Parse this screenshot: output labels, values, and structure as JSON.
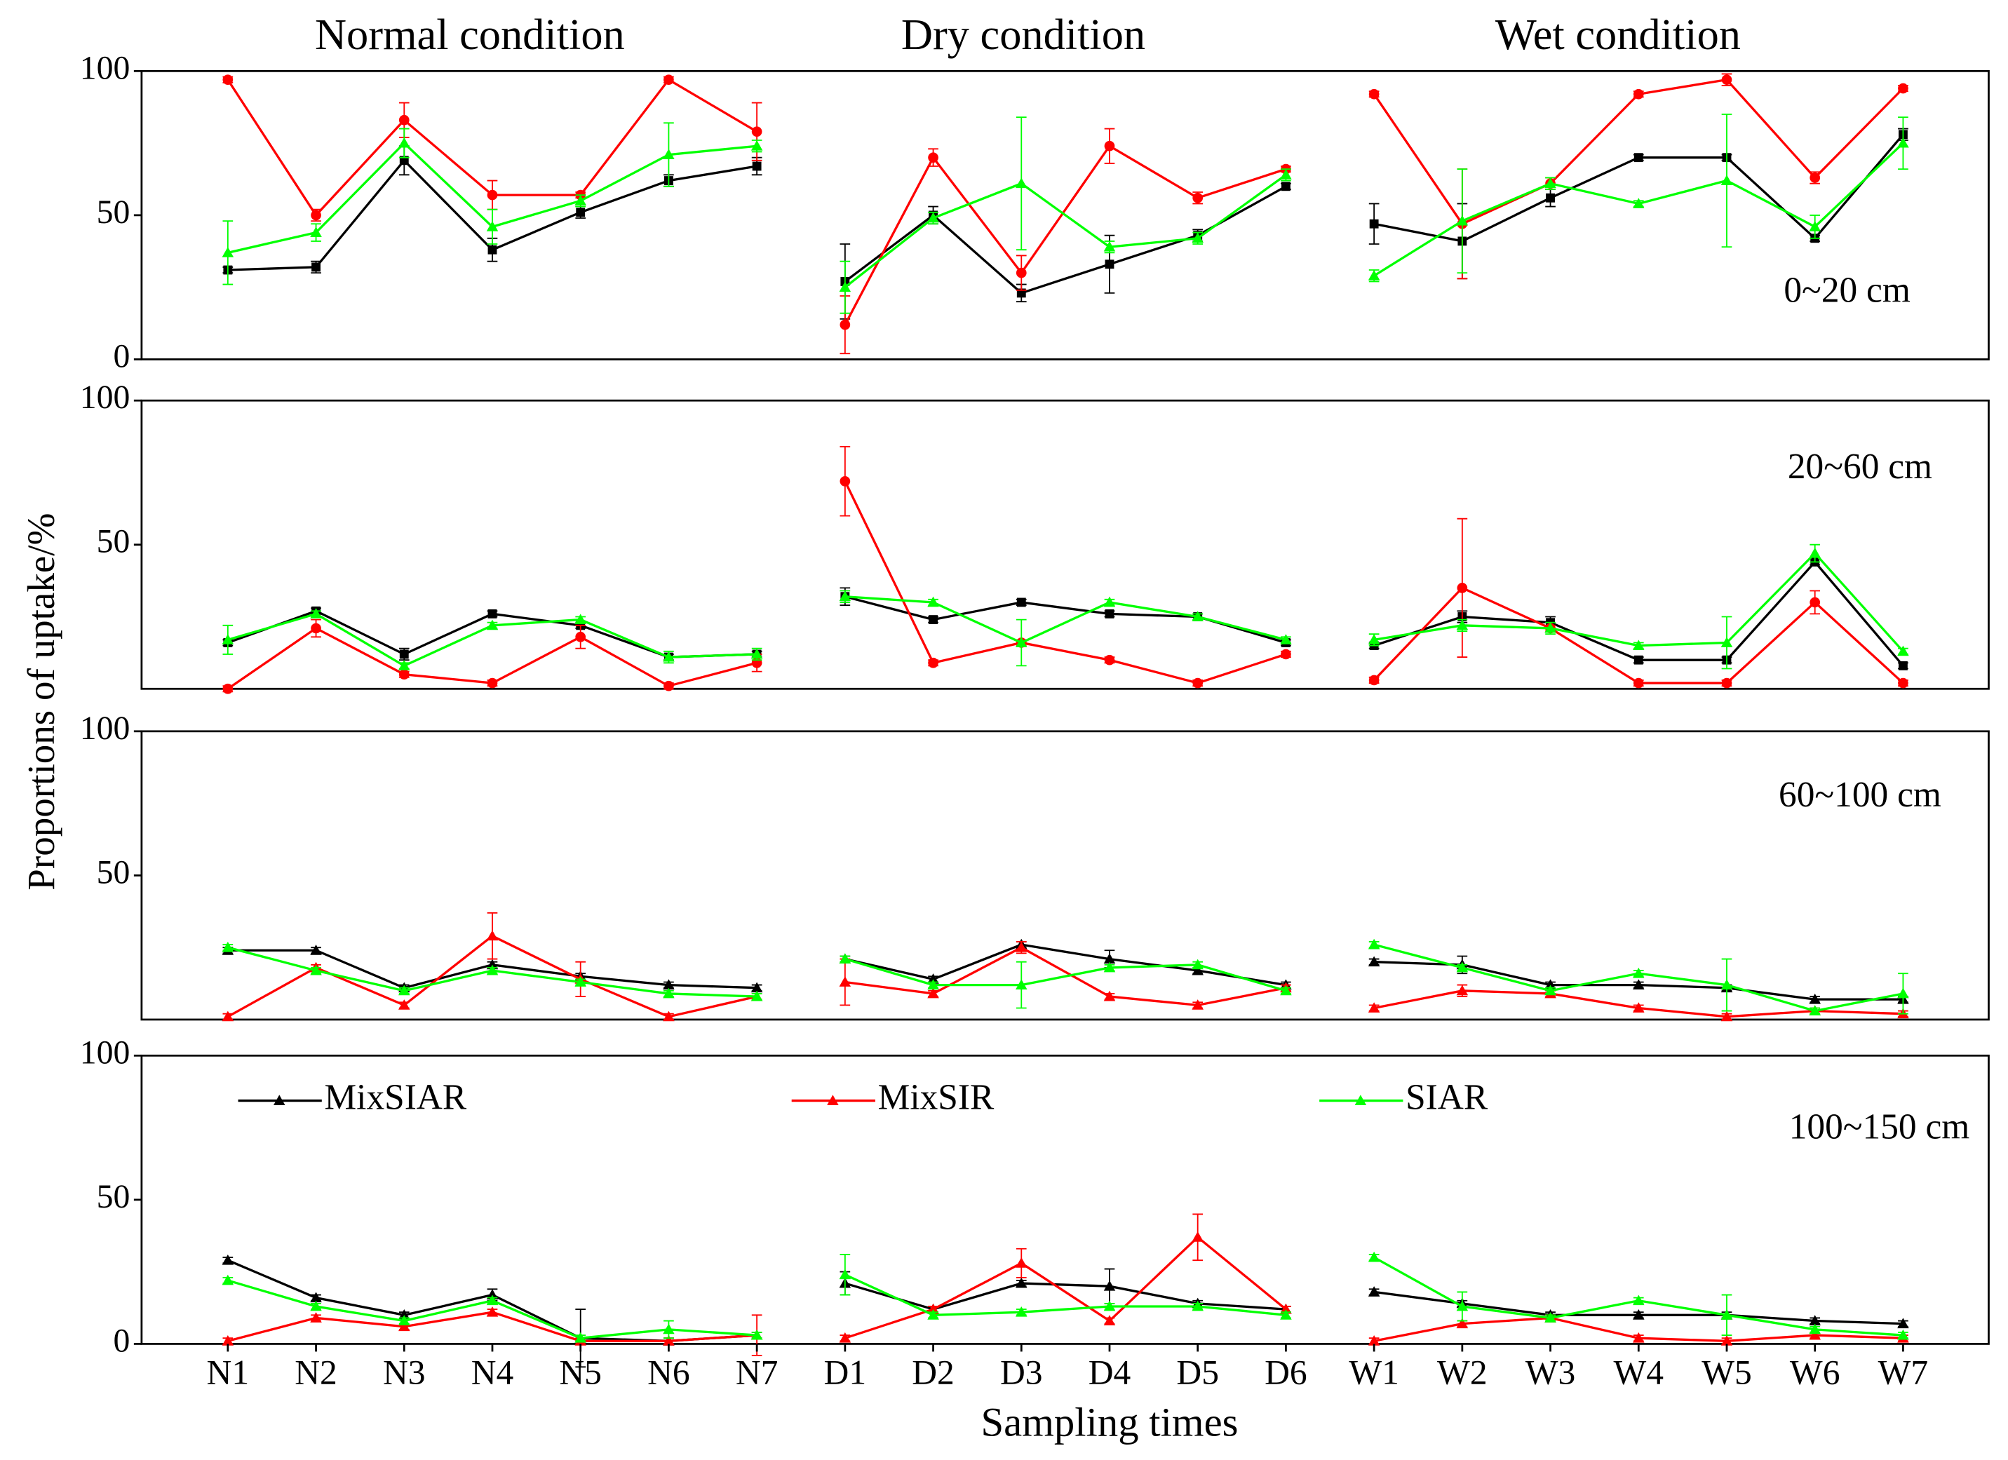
{
  "column_titles": [
    "Normal condition",
    "Dry condition",
    "Wet condition"
  ],
  "y_label": "Proportions of uptake/%",
  "x_label": "Sampling times",
  "categories": [
    "N1",
    "N2",
    "N3",
    "N4",
    "N5",
    "N6",
    "N7",
    "D1",
    "D2",
    "D3",
    "D4",
    "D5",
    "D6",
    "W1",
    "W2",
    "W3",
    "W4",
    "W5",
    "W6",
    "W7"
  ],
  "chart_data": [
    {
      "type": "line",
      "label": "0~20 cm",
      "ylim": [
        0,
        100
      ],
      "yticks": [
        0,
        50,
        100
      ],
      "series": [
        {
          "color": "#000000",
          "marker": "square",
          "values": [
            31,
            32,
            69,
            38,
            51,
            62,
            67,
            27,
            50,
            23,
            33,
            43,
            60,
            47,
            41,
            56,
            70,
            70,
            42,
            78
          ],
          "errors": [
            1,
            2,
            5,
            4,
            2,
            2,
            3,
            13,
            3,
            3,
            10,
            2,
            1,
            7,
            13,
            3,
            1,
            1,
            1,
            2
          ]
        },
        {
          "color": "#ff0000",
          "marker": "circle",
          "values": [
            97,
            50,
            83,
            57,
            57,
            97,
            79,
            12,
            70,
            30,
            74,
            56,
            66,
            92,
            47,
            61,
            92,
            97,
            63,
            94
          ],
          "errors": [
            1,
            2,
            6,
            5,
            1,
            1,
            10,
            10,
            3,
            6,
            6,
            2,
            1,
            1,
            19,
            2,
            1,
            2,
            2,
            1
          ]
        },
        {
          "color": "#00ff00",
          "marker": "triangle",
          "values": [
            37,
            44,
            75,
            46,
            55,
            71,
            74,
            25,
            49,
            61,
            39,
            42,
            64,
            29,
            48,
            61,
            54,
            62,
            46,
            75
          ],
          "errors": [
            11,
            3,
            5,
            6,
            2,
            11,
            2,
            9,
            2,
            23,
            2,
            2,
            2,
            2,
            18,
            2,
            1,
            23,
            4,
            9
          ]
        }
      ]
    },
    {
      "type": "line",
      "label": "20~60 cm",
      "ylim": [
        0,
        100
      ],
      "yticks": [
        50,
        100
      ],
      "series": [
        {
          "color": "#000000",
          "marker": "square",
          "values": [
            16,
            27,
            12,
            26,
            22,
            11,
            12,
            32,
            24,
            30,
            26,
            25,
            16,
            15,
            25,
            23,
            10,
            10,
            44,
            8
          ],
          "errors": [
            1,
            1,
            2,
            1,
            1,
            1,
            1,
            3,
            1,
            1,
            1,
            1,
            1,
            1,
            2,
            2,
            1,
            1,
            1,
            1
          ]
        },
        {
          "color": "#ff0000",
          "marker": "circle",
          "values": [
            0,
            21,
            5,
            2,
            18,
            1,
            9,
            72,
            9,
            16,
            10,
            2,
            12,
            3,
            35,
            21,
            2,
            2,
            30,
            2
          ],
          "errors": [
            1,
            3,
            1,
            1,
            4,
            1,
            3,
            12,
            1,
            1,
            1,
            1,
            1,
            1,
            24,
            1,
            1,
            1,
            4,
            1
          ]
        },
        {
          "color": "#00ff00",
          "marker": "triangle",
          "values": [
            17,
            26,
            8,
            22,
            24,
            11,
            12,
            32,
            30,
            16,
            30,
            25,
            17,
            17,
            22,
            21,
            15,
            16,
            47,
            13
          ],
          "errors": [
            5,
            1,
            1,
            1,
            1,
            2,
            2,
            2,
            1,
            8,
            1,
            1,
            1,
            2,
            2,
            2,
            1,
            9,
            3,
            1
          ]
        }
      ]
    },
    {
      "type": "line",
      "label": "60~100 cm",
      "ylim": [
        0,
        100
      ],
      "yticks": [
        50,
        100
      ],
      "series": [
        {
          "color": "#000000",
          "marker": "triangle",
          "values": [
            24,
            24,
            11,
            19,
            15,
            12,
            11,
            21,
            14,
            26,
            21,
            17,
            12,
            20,
            19,
            12,
            12,
            11,
            7,
            7
          ],
          "errors": [
            1,
            1,
            1,
            1,
            1,
            1,
            1,
            1,
            1,
            1,
            3,
            1,
            1,
            1,
            3,
            1,
            1,
            1,
            1,
            1
          ]
        },
        {
          "color": "#ff0000",
          "marker": "triangle",
          "values": [
            1,
            18,
            5,
            29,
            14,
            1,
            8,
            13,
            9,
            25,
            8,
            5,
            11,
            4,
            10,
            9,
            4,
            1,
            3,
            2
          ],
          "errors": [
            1,
            1,
            1,
            8,
            6,
            1,
            1,
            8,
            1,
            2,
            1,
            1,
            1,
            1,
            2,
            1,
            1,
            1,
            1,
            1
          ]
        },
        {
          "color": "#00ff00",
          "marker": "triangle",
          "values": [
            25,
            17,
            10,
            17,
            13,
            9,
            8,
            21,
            12,
            12,
            18,
            19,
            10,
            26,
            18,
            10,
            16,
            12,
            3,
            9
          ],
          "errors": [
            1,
            1,
            1,
            1,
            1,
            1,
            1,
            1,
            1,
            8,
            1,
            1,
            1,
            1,
            1,
            1,
            1,
            9,
            1,
            7
          ]
        }
      ]
    },
    {
      "type": "line",
      "label": "100~150 cm",
      "ylim": [
        0,
        100
      ],
      "yticks": [
        0,
        50,
        100
      ],
      "series": [
        {
          "name": "MixSIAR",
          "color": "#000000",
          "marker": "triangle",
          "values": [
            29,
            16,
            10,
            17,
            2,
            1,
            3,
            21,
            12,
            21,
            20,
            14,
            12,
            18,
            14,
            10,
            10,
            10,
            8,
            7
          ],
          "errors": [
            1,
            1,
            1,
            2,
            10,
            1,
            1,
            4,
            1,
            1,
            6,
            1,
            1,
            1,
            1,
            1,
            1,
            1,
            1,
            1
          ]
        },
        {
          "name": "MixSIR",
          "color": "#ff0000",
          "marker": "triangle",
          "values": [
            1,
            9,
            6,
            11,
            1,
            1,
            3,
            2,
            12,
            28,
            8,
            37,
            12,
            1,
            7,
            9,
            2,
            1,
            3,
            2
          ],
          "errors": [
            1,
            1,
            1,
            1,
            1,
            1,
            7,
            1,
            1,
            5,
            1,
            8,
            1,
            1,
            1,
            1,
            1,
            1,
            1,
            1
          ]
        },
        {
          "name": "SIAR",
          "color": "#00ff00",
          "marker": "triangle",
          "values": [
            22,
            13,
            8,
            15,
            2,
            5,
            3,
            24,
            10,
            11,
            13,
            13,
            10,
            30,
            13,
            9,
            15,
            10,
            5,
            3
          ],
          "errors": [
            1,
            1,
            1,
            1,
            1,
            3,
            1,
            7,
            1,
            1,
            1,
            1,
            1,
            1,
            5,
            1,
            1,
            7,
            1,
            1
          ]
        }
      ],
      "legend": true
    }
  ]
}
